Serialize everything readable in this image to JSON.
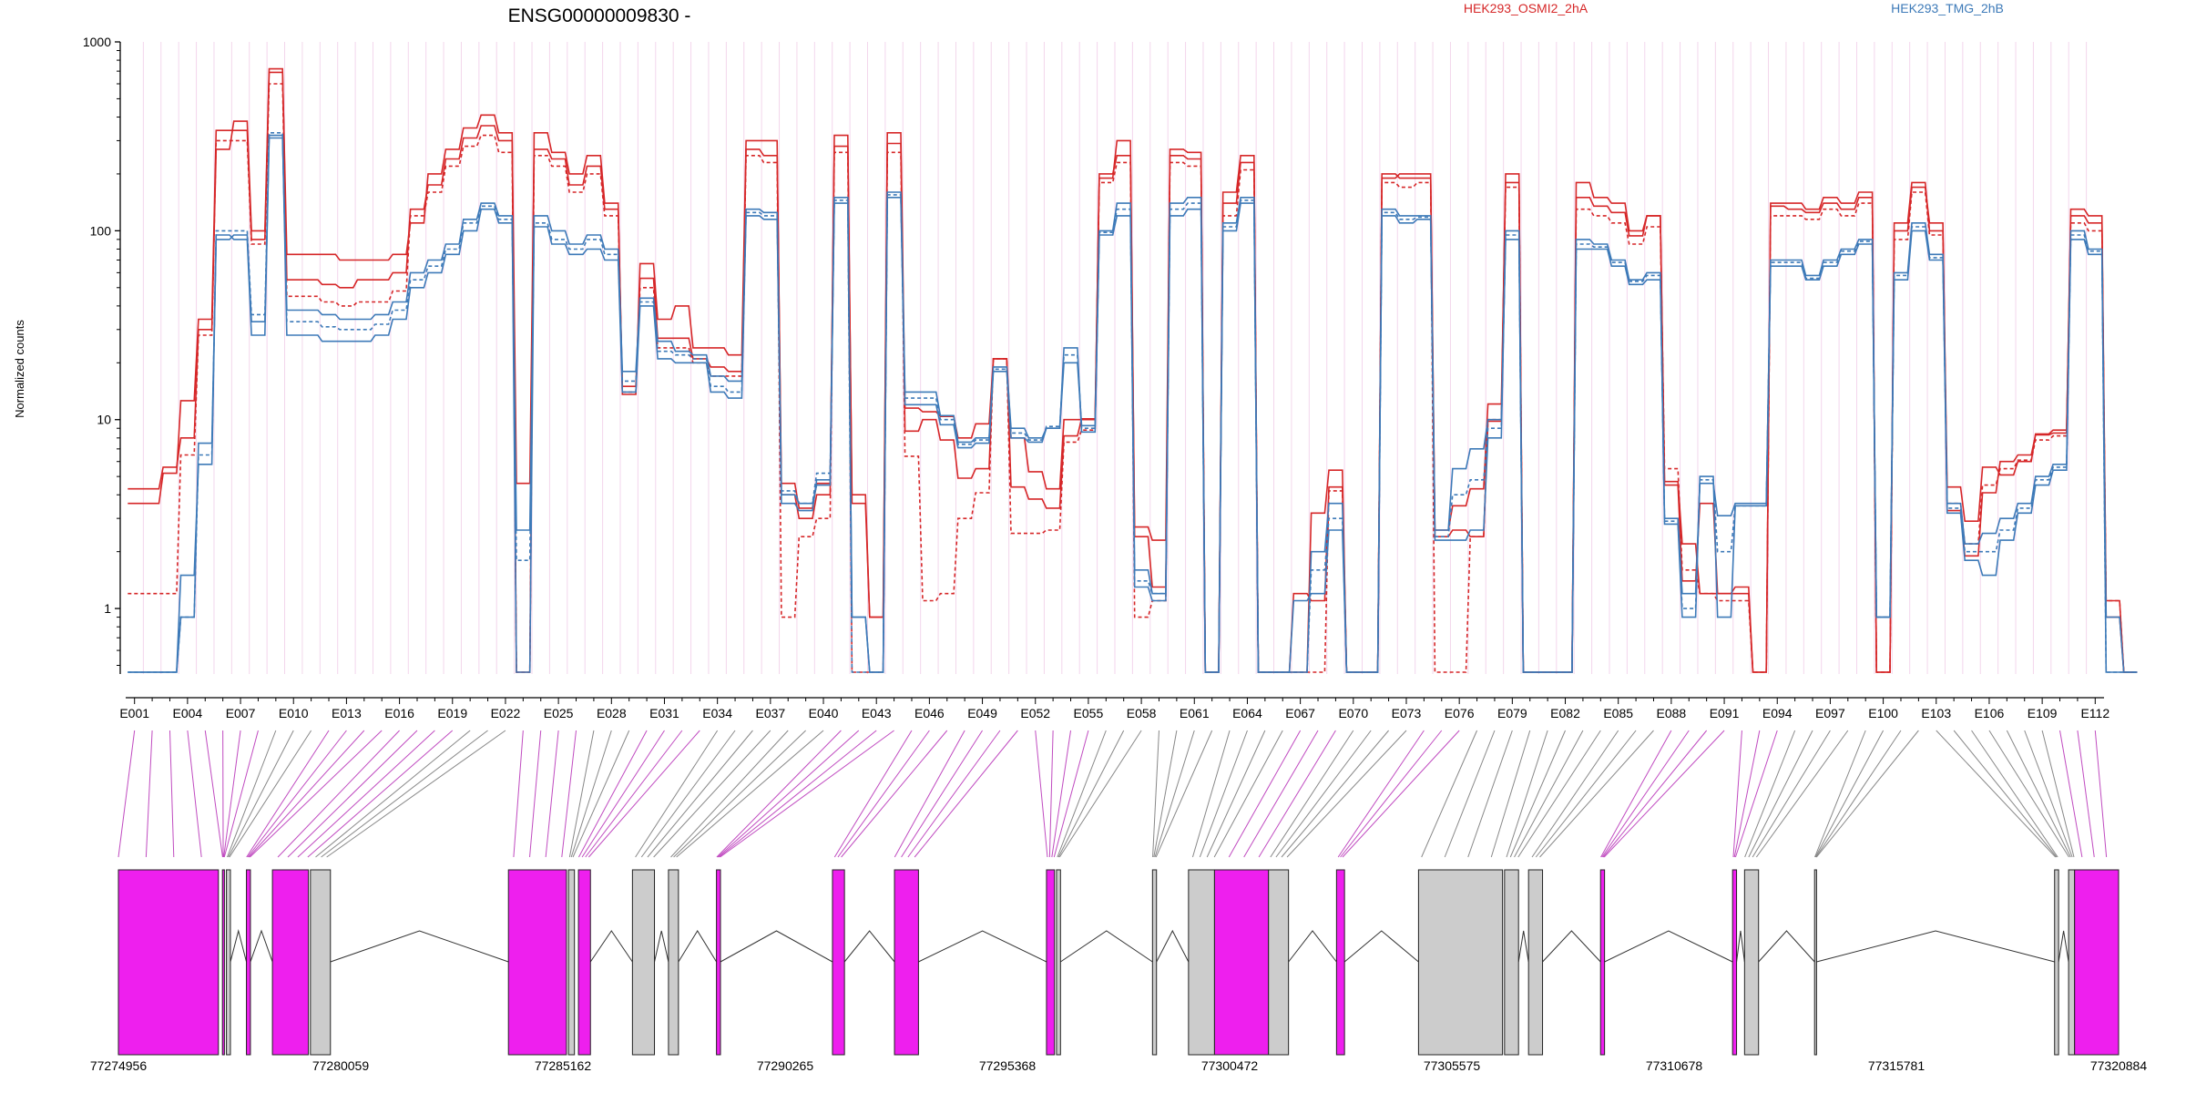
{
  "chart_data": {
    "type": "line",
    "title": "ENSG00000009830 -",
    "ylabel": "Normalized counts",
    "y_scale": "log",
    "ylim": [
      0.45,
      1000
    ],
    "y_ticks": [
      1,
      10,
      100,
      1000
    ],
    "y_tick_labels": [
      "1",
      "10",
      "100",
      "1000"
    ],
    "legend": [
      {
        "name": "HEK293_OSMI2_2hA",
        "color": "#d62728"
      },
      {
        "name": "HEK293_TMG_2hB",
        "color": "#3d7ab8"
      }
    ],
    "exon_count": 112,
    "exon_labels": [
      "E001",
      "E004",
      "E007",
      "E010",
      "E013",
      "E016",
      "E019",
      "E022",
      "E025",
      "E028",
      "E031",
      "E034",
      "E037",
      "E040",
      "E043",
      "E046",
      "E049",
      "E052",
      "E055",
      "E058",
      "E061",
      "E064",
      "E067",
      "E070",
      "E073",
      "E076",
      "E079",
      "E082",
      "E085",
      "E088",
      "E091",
      "E094",
      "E097",
      "E100",
      "E103",
      "E106",
      "E109",
      "E112"
    ],
    "series": [
      {
        "name": "HEK293_OSMI2_2hA",
        "group": 0,
        "values": [
          3.6,
          3.6,
          5.2,
          12.6,
          34,
          340,
          340,
          90,
          690,
          75,
          75,
          75,
          70,
          70,
          70,
          75,
          110,
          200,
          270,
          350,
          410,
          330,
          0.46,
          330,
          260,
          200,
          250,
          140,
          13.6,
          67,
          34,
          40,
          24,
          24,
          22,
          300,
          300,
          4,
          3,
          4,
          320,
          3.6,
          0.9,
          330,
          11.5,
          11,
          10.4,
          8,
          9.5,
          21,
          8,
          5.3,
          4.3,
          10,
          10,
          190,
          300,
          2.4,
          1.3,
          270,
          260,
          0.46,
          160,
          250,
          0.46,
          0.46,
          1.2,
          1.1,
          4.4,
          0.46,
          0.46,
          190,
          200,
          200,
          2.4,
          2.6,
          2.4,
          9.8,
          200,
          0.46,
          0.46,
          0.46,
          180,
          150,
          140,
          100,
          120,
          4.5,
          1.4,
          3.6,
          1.2,
          1.3,
          0.46,
          140,
          140,
          130,
          150,
          140,
          160,
          0.46,
          100,
          170,
          110,
          3.3,
          1.9,
          4.1,
          6,
          6.5,
          8.3,
          8.5,
          130,
          120,
          1.1,
          0.46
        ]
      },
      {
        "name": "HEK293_OSMI2_2hA",
        "group": 0,
        "values": [
          4.3,
          4.3,
          5.6,
          8,
          30,
          270,
          380,
          100,
          720,
          55,
          55,
          52,
          50,
          55,
          55,
          60,
          130,
          175,
          240,
          310,
          360,
          300,
          4.6,
          270,
          240,
          175,
          220,
          130,
          15,
          56,
          27,
          27,
          21,
          19,
          18,
          270,
          250,
          4.6,
          3.4,
          4.6,
          280,
          4,
          0.9,
          290,
          8.7,
          10,
          7.8,
          4.9,
          5.5,
          21,
          4.4,
          3.8,
          3.4,
          8.2,
          10.1,
          200,
          250,
          2.7,
          2.3,
          250,
          240,
          0.46,
          140,
          230,
          0.46,
          0.46,
          0.46,
          3.2,
          5.4,
          0.46,
          0.46,
          200,
          190,
          190,
          2.6,
          3.5,
          4.3,
          12.1,
          180,
          0.46,
          0.46,
          0.46,
          150,
          135,
          125,
          94,
          120,
          4.7,
          2.2,
          1.2,
          1.2,
          1.2,
          0.46,
          135,
          130,
          125,
          140,
          130,
          150,
          0.46,
          110,
          180,
          100,
          4.4,
          2.9,
          5.6,
          5.1,
          6,
          8.4,
          8.8,
          120,
          110,
          0.9,
          0.46
        ]
      },
      {
        "name": "HEK293_OSMI2_2hA",
        "group": 0,
        "values": [
          1.2,
          1.2,
          1.2,
          6.5,
          28,
          300,
          300,
          85,
          600,
          45,
          45,
          42,
          40,
          42,
          42,
          48,
          120,
          160,
          220,
          280,
          320,
          260,
          0.46,
          250,
          220,
          160,
          200,
          120,
          14,
          50,
          24,
          24,
          20,
          17,
          17,
          250,
          230,
          0.9,
          2.4,
          3,
          260,
          0.46,
          0.46,
          260,
          6.4,
          1.1,
          1.2,
          3,
          4.1,
          21,
          2.5,
          2.5,
          2.6,
          7.6,
          8.8,
          180,
          230,
          0.9,
          1.1,
          230,
          220,
          0.46,
          120,
          210,
          0.46,
          0.46,
          0.46,
          0.46,
          4.2,
          0.46,
          0.46,
          180,
          170,
          180,
          0.46,
          0.46,
          2.4,
          10,
          170,
          0.46,
          0.46,
          0.46,
          130,
          120,
          110,
          85,
          105,
          5.5,
          1.6,
          1.2,
          1.1,
          1.1,
          0.46,
          120,
          120,
          115,
          130,
          120,
          140,
          0.46,
          90,
          160,
          95,
          3.6,
          2.2,
          4.5,
          5.5,
          6.1,
          7.8,
          8.2,
          110,
          100,
          1.1,
          0.46
        ]
      },
      {
        "name": "HEK293_TMG_2hB",
        "group": 1,
        "values": [
          0.46,
          0.46,
          0.46,
          0.9,
          7.5,
          90,
          95,
          33,
          310,
          38,
          38,
          36,
          34,
          34,
          36,
          42,
          60,
          70,
          85,
          115,
          140,
          120,
          0.46,
          120,
          100,
          85,
          95,
          80,
          18,
          44,
          26,
          23,
          22,
          17,
          16,
          130,
          125,
          4,
          3.6,
          4.5,
          150,
          0.9,
          0.46,
          160,
          14,
          14,
          10.5,
          7.6,
          8,
          19,
          9,
          8,
          9,
          20,
          9.3,
          100,
          140,
          1.6,
          1.2,
          140,
          150,
          0.46,
          110,
          150,
          0.46,
          0.46,
          1.1,
          1.2,
          2.6,
          0.46,
          0.46,
          130,
          120,
          120,
          2.3,
          2.3,
          2.6,
          8,
          100,
          0.46,
          0.46,
          0.46,
          90,
          85,
          70,
          55,
          60,
          2.8,
          0.9,
          5,
          0.9,
          3.5,
          3.5,
          70,
          70,
          58,
          70,
          80,
          90,
          0.9,
          60,
          110,
          75,
          3.6,
          2.2,
          2.5,
          3,
          3.6,
          5,
          5.8,
          100,
          80,
          0.46,
          0.46
        ]
      },
      {
        "name": "HEK293_TMG_2hB",
        "group": 1,
        "values": [
          0.46,
          0.46,
          0.46,
          1.5,
          5.8,
          95,
          90,
          28,
          320,
          28,
          28,
          26,
          26,
          26,
          28,
          34,
          50,
          60,
          75,
          100,
          130,
          110,
          2.6,
          105,
          85,
          75,
          80,
          70,
          14,
          40,
          21,
          20,
          20,
          14,
          13,
          120,
          115,
          3.6,
          3.3,
          4.8,
          140,
          0.9,
          0.46,
          150,
          12,
          12,
          9.4,
          7.1,
          7.5,
          18,
          8,
          7.6,
          9,
          24,
          8.6,
          95,
          120,
          1.3,
          1.1,
          120,
          130,
          0.46,
          100,
          140,
          0.46,
          0.46,
          0.46,
          2,
          3.6,
          0.46,
          0.46,
          120,
          110,
          115,
          2.6,
          5.5,
          7,
          10,
          90,
          0.46,
          0.46,
          0.46,
          80,
          80,
          65,
          52,
          55,
          3,
          1.2,
          4.6,
          3.1,
          3.6,
          3.6,
          65,
          65,
          55,
          65,
          75,
          85,
          0.9,
          55,
          100,
          70,
          3.2,
          1.8,
          1.5,
          2.3,
          3.2,
          4.5,
          5.4,
          90,
          75,
          0.9,
          0.46
        ]
      },
      {
        "name": "HEK293_TMG_2hB",
        "group": 1,
        "values": [
          0.46,
          0.46,
          0.46,
          0.9,
          6.5,
          100,
          100,
          36,
          330,
          33,
          33,
          31,
          30,
          30,
          32,
          38,
          55,
          65,
          80,
          110,
          135,
          115,
          1.8,
          110,
          90,
          80,
          90,
          75,
          16,
          42,
          23,
          22,
          21,
          15,
          14,
          125,
          120,
          4.2,
          3.6,
          5.2,
          145,
          0.46,
          0.46,
          155,
          13,
          13,
          10,
          7.4,
          7.8,
          18.5,
          8.5,
          7.8,
          9.2,
          22,
          9,
          98,
          130,
          1.4,
          1.2,
          130,
          140,
          0.46,
          105,
          145,
          0.46,
          0.46,
          0.46,
          1.6,
          3,
          0.46,
          0.46,
          125,
          115,
          118,
          2.4,
          4,
          4.8,
          9,
          95,
          0.46,
          0.46,
          0.46,
          85,
          82,
          68,
          54,
          58,
          2.9,
          1,
          4.8,
          2,
          3.5,
          3.5,
          68,
          68,
          56,
          68,
          78,
          88,
          0.9,
          58,
          105,
          72,
          3.4,
          2,
          2,
          2.6,
          3.4,
          4.8,
          5.6,
          95,
          78,
          0.46,
          0.46
        ]
      }
    ],
    "genomic_axis": {
      "label_values": [
        77274956,
        77280059,
        77285162,
        77290265,
        77295368,
        77300472,
        77305575,
        77310678,
        77315781,
        77320884
      ],
      "range": [
        77274956,
        77320884
      ]
    }
  },
  "colors": {
    "group_a": "#d62728",
    "group_b": "#3d7ab8",
    "exon_highlight": "#ee1fee",
    "exon_plain": "#cccccc",
    "intron_line": "#333333",
    "grid": "#f3d6ec"
  }
}
